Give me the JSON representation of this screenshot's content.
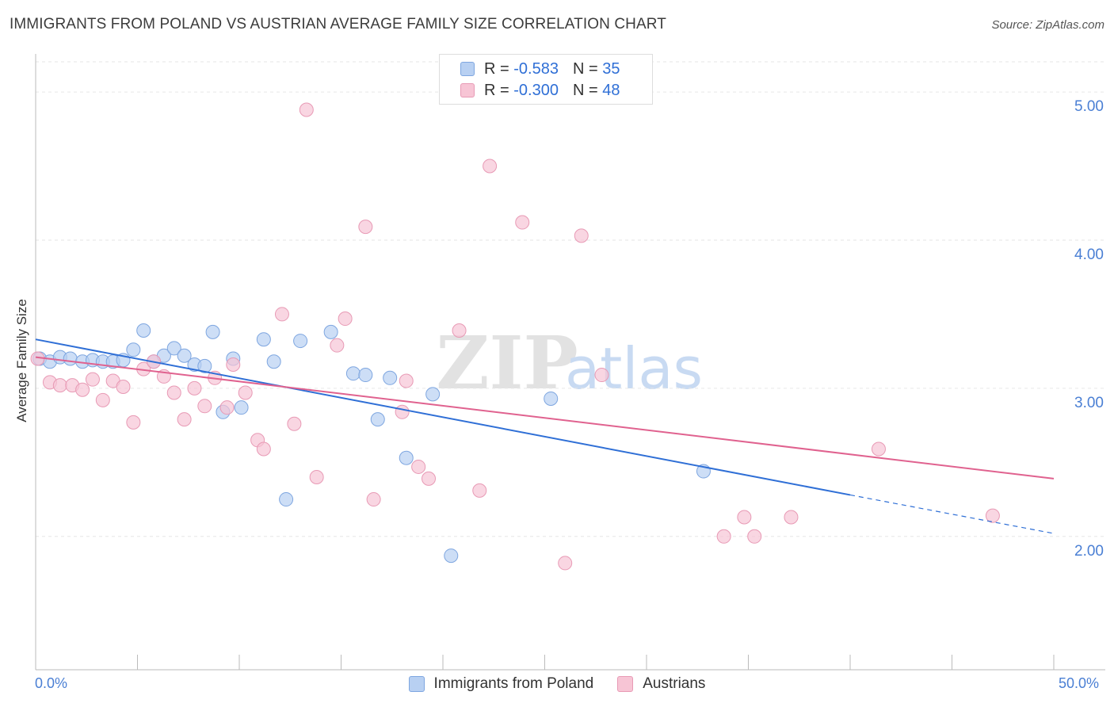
{
  "header": {
    "title": "IMMIGRANTS FROM POLAND VS AUSTRIAN AVERAGE FAMILY SIZE CORRELATION CHART",
    "source": "Source: ZipAtlas.com"
  },
  "watermark": {
    "zip": "ZIP",
    "atlas": "atlas"
  },
  "legend_top": {
    "rows": [
      {
        "r_label": "R =",
        "r_value": "-0.583",
        "n_label": "N =",
        "n_value": "35"
      },
      {
        "r_label": "R =",
        "r_value": "-0.300",
        "n_label": "N =",
        "n_value": "48"
      }
    ]
  },
  "legend_bottom": {
    "items": [
      {
        "label": "Immigrants from Poland"
      },
      {
        "label": "Austrians"
      }
    ]
  },
  "colors": {
    "blue_fill": "#b8d0f2",
    "blue_stroke": "#7ea6e0",
    "blue_line": "#2f6fd6",
    "pink_fill": "#f7c5d5",
    "pink_stroke": "#e89ab5",
    "pink_line": "#e0628f",
    "tick_text": "#4a7fd4"
  },
  "chart_data": {
    "type": "scatter",
    "title": "IMMIGRANTS FROM POLAND VS AUSTRIAN AVERAGE FAMILY SIZE CORRELATION CHART",
    "xlabel": "",
    "ylabel": "Average Family Size",
    "xlim": [
      0,
      50
    ],
    "ylim": [
      1.1,
      5.3
    ],
    "x_tick_labels": [
      "0.0%",
      "50.0%"
    ],
    "y_ticks": [
      2.0,
      3.0,
      4.0,
      5.0
    ],
    "y_tick_labels": [
      "2.00",
      "3.00",
      "4.00",
      "5.00"
    ],
    "grid": true,
    "series": [
      {
        "name": "Immigrants from Poland",
        "points": [
          [
            0.2,
            3.2
          ],
          [
            0.7,
            3.18
          ],
          [
            1.2,
            3.21
          ],
          [
            1.7,
            3.2
          ],
          [
            2.3,
            3.18
          ],
          [
            2.8,
            3.19
          ],
          [
            3.3,
            3.18
          ],
          [
            3.8,
            3.18
          ],
          [
            4.3,
            3.19
          ],
          [
            4.8,
            3.26
          ],
          [
            5.3,
            3.39
          ],
          [
            5.8,
            3.18
          ],
          [
            6.3,
            3.22
          ],
          [
            6.8,
            3.27
          ],
          [
            7.3,
            3.22
          ],
          [
            7.8,
            3.16
          ],
          [
            8.3,
            3.15
          ],
          [
            8.7,
            3.38
          ],
          [
            9.2,
            2.84
          ],
          [
            9.7,
            3.2
          ],
          [
            10.1,
            2.87
          ],
          [
            11.2,
            3.33
          ],
          [
            11.7,
            3.18
          ],
          [
            12.3,
            2.25
          ],
          [
            13.0,
            3.32
          ],
          [
            14.5,
            3.38
          ],
          [
            15.6,
            3.1
          ],
          [
            16.2,
            3.09
          ],
          [
            16.8,
            2.79
          ],
          [
            17.4,
            3.07
          ],
          [
            18.2,
            2.53
          ],
          [
            19.5,
            2.96
          ],
          [
            20.4,
            1.87
          ],
          [
            25.3,
            2.93
          ],
          [
            32.8,
            2.44
          ]
        ],
        "trend": {
          "x": [
            0.0,
            40.0
          ],
          "y": [
            3.33,
            2.28
          ]
        },
        "trend_extension": {
          "x": [
            40.0,
            50.0
          ],
          "y": [
            2.28,
            2.02
          ]
        }
      },
      {
        "name": "Austrians",
        "points": [
          [
            0.1,
            3.2
          ],
          [
            0.7,
            3.04
          ],
          [
            1.2,
            3.02
          ],
          [
            1.8,
            3.02
          ],
          [
            2.3,
            2.99
          ],
          [
            2.8,
            3.06
          ],
          [
            3.3,
            2.92
          ],
          [
            3.8,
            3.05
          ],
          [
            4.3,
            3.01
          ],
          [
            4.8,
            2.77
          ],
          [
            5.3,
            3.13
          ],
          [
            5.8,
            3.18
          ],
          [
            6.3,
            3.08
          ],
          [
            6.8,
            2.97
          ],
          [
            7.3,
            2.79
          ],
          [
            7.8,
            3.0
          ],
          [
            8.3,
            2.88
          ],
          [
            8.8,
            3.07
          ],
          [
            9.4,
            2.87
          ],
          [
            9.7,
            3.16
          ],
          [
            10.3,
            2.97
          ],
          [
            10.9,
            2.65
          ],
          [
            11.2,
            2.59
          ],
          [
            12.1,
            3.5
          ],
          [
            12.7,
            2.76
          ],
          [
            13.3,
            4.88
          ],
          [
            13.8,
            2.4
          ],
          [
            14.8,
            3.29
          ],
          [
            15.2,
            3.47
          ],
          [
            16.2,
            4.09
          ],
          [
            16.6,
            2.25
          ],
          [
            18.0,
            2.84
          ],
          [
            18.2,
            3.05
          ],
          [
            18.8,
            2.47
          ],
          [
            19.3,
            2.39
          ],
          [
            20.8,
            3.39
          ],
          [
            21.8,
            2.31
          ],
          [
            22.3,
            4.5
          ],
          [
            23.9,
            4.12
          ],
          [
            26.0,
            1.82
          ],
          [
            26.8,
            4.03
          ],
          [
            27.8,
            3.09
          ],
          [
            41.4,
            2.59
          ],
          [
            33.8,
            2.0
          ],
          [
            34.8,
            2.13
          ],
          [
            35.3,
            2.0
          ],
          [
            37.1,
            2.13
          ],
          [
            47.0,
            2.14
          ]
        ],
        "trend": {
          "x": [
            0.0,
            50.0
          ],
          "y": [
            3.21,
            2.39
          ]
        }
      }
    ]
  }
}
